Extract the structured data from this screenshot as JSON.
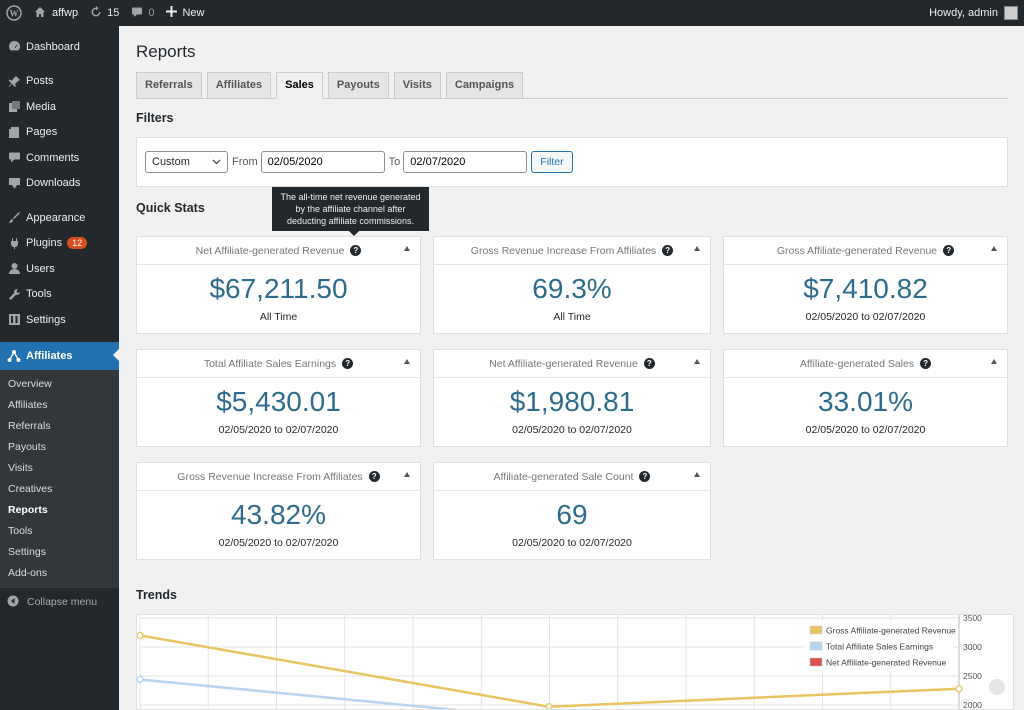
{
  "admin_bar": {
    "site_name": "affwp",
    "updates_count": "15",
    "comments_count": "0",
    "new_label": "New",
    "howdy": "Howdy, admin"
  },
  "sidebar": {
    "items": [
      {
        "label": "Dashboard",
        "icon": "dashboard-icon"
      },
      {
        "label": "Posts",
        "icon": "pin-icon"
      },
      {
        "label": "Media",
        "icon": "media-icon"
      },
      {
        "label": "Pages",
        "icon": "pages-icon"
      },
      {
        "label": "Comments",
        "icon": "comment-icon"
      },
      {
        "label": "Downloads",
        "icon": "download-icon"
      },
      {
        "label": "Appearance",
        "icon": "brush-icon"
      },
      {
        "label": "Plugins",
        "icon": "plugin-icon",
        "badge": "12"
      },
      {
        "label": "Users",
        "icon": "user-icon"
      },
      {
        "label": "Tools",
        "icon": "wrench-icon"
      },
      {
        "label": "Settings",
        "icon": "settings-icon"
      },
      {
        "label": "Affiliates",
        "icon": "affiliates-icon"
      }
    ],
    "submenu": [
      "Overview",
      "Affiliates",
      "Referrals",
      "Payouts",
      "Visits",
      "Creatives",
      "Reports",
      "Tools",
      "Settings",
      "Add-ons"
    ],
    "collapse_label": "Collapse menu"
  },
  "page": {
    "title": "Reports"
  },
  "tabs": [
    "Referrals",
    "Affiliates",
    "Sales",
    "Payouts",
    "Visits",
    "Campaigns"
  ],
  "filters": {
    "heading": "Filters",
    "range_select": "Custom",
    "from_label": "From",
    "from_value": "02/05/2020",
    "to_label": "To",
    "to_value": "02/07/2020",
    "button": "Filter"
  },
  "quick_stats": {
    "heading": "Quick Stats",
    "tooltip": "The all-time net revenue generated by the affiliate channel after deducting affiliate commissions.",
    "cards": [
      {
        "title": "Net Affiliate-generated Revenue",
        "value": "$67,211.50",
        "sub": "All Time"
      },
      {
        "title": "Gross Revenue Increase From Affiliates",
        "value": "69.3%",
        "sub": "All Time"
      },
      {
        "title": "Gross Affiliate-generated Revenue",
        "value": "$7,410.82",
        "sub": "02/05/2020 to 02/07/2020"
      },
      {
        "title": "Total Affiliate Sales Earnings",
        "value": "$5,430.01",
        "sub": "02/05/2020 to 02/07/2020"
      },
      {
        "title": "Net Affiliate-generated Revenue",
        "value": "$1,980.81",
        "sub": "02/05/2020 to 02/07/2020"
      },
      {
        "title": "Affiliate-generated Sales",
        "value": "33.01%",
        "sub": "02/05/2020 to 02/07/2020"
      },
      {
        "title": "Gross Revenue Increase From Affiliates",
        "value": "43.82%",
        "sub": "02/05/2020 to 02/07/2020"
      },
      {
        "title": "Affiliate-generated Sale Count",
        "value": "69",
        "sub": "02/05/2020 to 02/07/2020"
      }
    ]
  },
  "trends": {
    "heading": "Trends"
  },
  "chart_data": {
    "type": "line",
    "y_ticks": [
      "3500",
      "3000",
      "2500",
      "2000"
    ],
    "ylim": [
      2000,
      3500
    ],
    "legend_position": "top-right",
    "grid": true,
    "series": [
      {
        "name": "Gross Affiliate-generated Revenue",
        "color": "#e8c560",
        "values": [
          3200,
          1970,
          2280
        ]
      },
      {
        "name": "Total Affiliate Sales Earnings",
        "color": "#b9d4ee",
        "values": [
          2440
        ]
      },
      {
        "name": "Net Affiliate-generated Revenue",
        "color": "#d9534f",
        "values": []
      }
    ]
  }
}
